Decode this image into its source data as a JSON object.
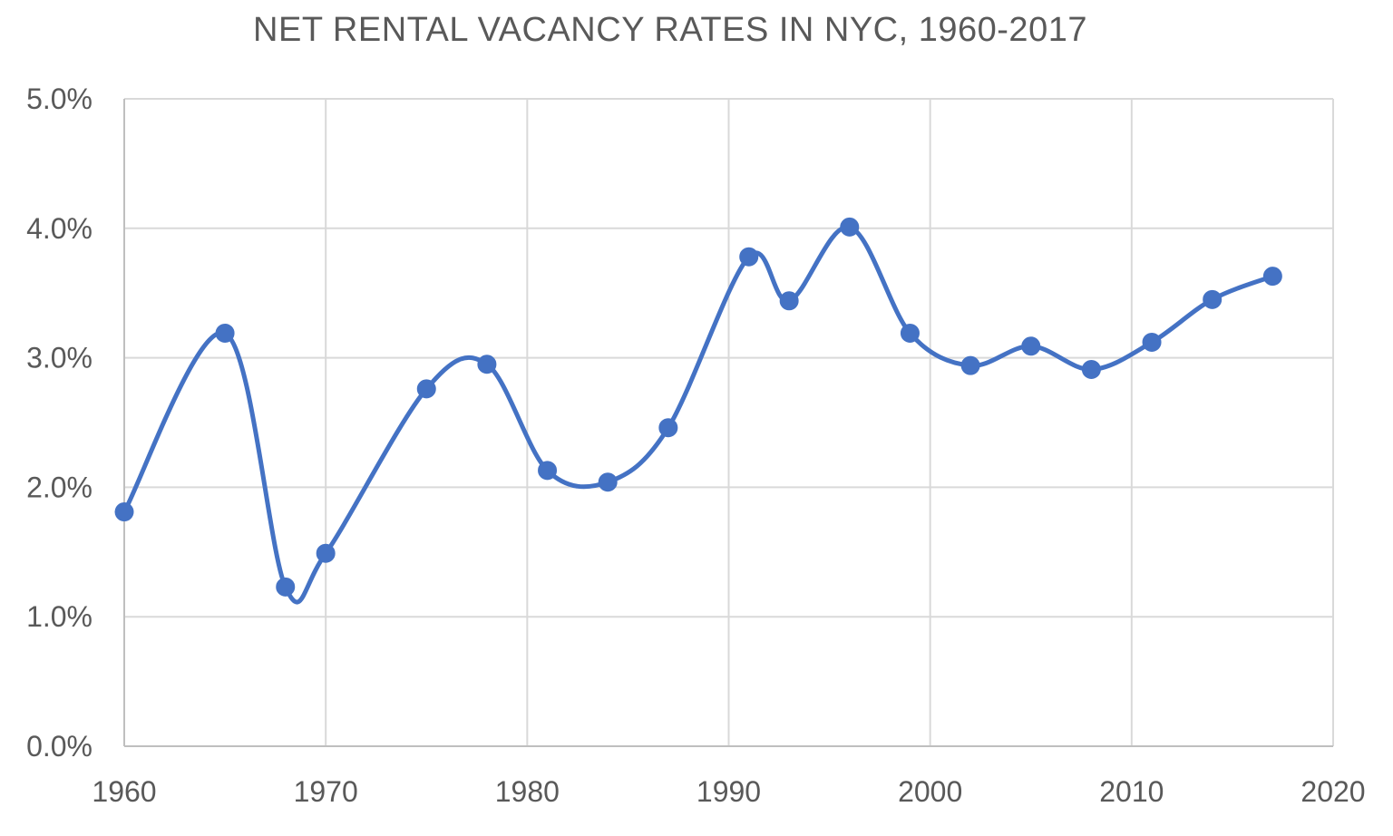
{
  "chart_data": {
    "type": "line",
    "title": "NET RENTAL VACANCY RATES IN NYC, 1960-2017",
    "xlabel": "",
    "ylabel": "",
    "xlim": [
      1960,
      2020
    ],
    "ylim": [
      0,
      5
    ],
    "x_ticks": [
      1960,
      1970,
      1980,
      1990,
      2000,
      2010,
      2020
    ],
    "x_tick_labels": [
      "1960",
      "1970",
      "1980",
      "1990",
      "2000",
      "2010",
      "2020"
    ],
    "y_ticks": [
      0,
      1,
      2,
      3,
      4,
      5
    ],
    "y_tick_labels": [
      "0.0%",
      "1.0%",
      "2.0%",
      "3.0%",
      "4.0%",
      "5.0%"
    ],
    "grid": true,
    "smooth": true,
    "legend": "none",
    "series": [
      {
        "color": "#4472c4",
        "x": [
          1960,
          1965,
          1968,
          1970,
          1975,
          1978,
          1981,
          1984,
          1987,
          1991,
          1993,
          1996,
          1999,
          2002,
          2005,
          2008,
          2011,
          2014,
          2017
        ],
        "y": [
          1.81,
          3.19,
          1.23,
          1.49,
          2.76,
          2.95,
          2.13,
          2.04,
          2.46,
          3.78,
          3.44,
          4.01,
          3.19,
          2.94,
          3.09,
          2.91,
          3.12,
          3.45,
          3.63
        ]
      }
    ]
  }
}
